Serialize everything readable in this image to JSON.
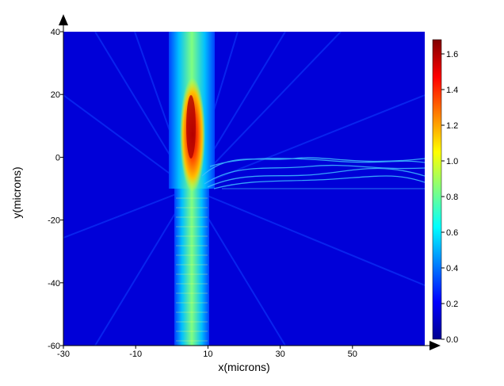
{
  "chart_data": {
    "type": "heatmap",
    "title": "",
    "xlabel": "x(microns)",
    "ylabel": "y(microns)",
    "xlim": [
      -30,
      70
    ],
    "ylim": [
      -60,
      40
    ],
    "x_ticks": [
      -30,
      -10,
      10,
      30,
      50
    ],
    "y_ticks": [
      40,
      20,
      0,
      -20,
      -40,
      -60
    ],
    "colorbar": {
      "min": 0.0,
      "max": 1.68,
      "ticks": [
        "1.6",
        "1.4",
        "1.2",
        "1.0",
        "0.8",
        "0.6",
        "0.4",
        "0.2",
        "0.0"
      ],
      "colormap": [
        "#00008f",
        "#0000ff",
        "#0080ff",
        "#00ffff",
        "#80ff80",
        "#ffff00",
        "#ff8000",
        "#ff0000",
        "#800000"
      ]
    },
    "background_level": 0.1,
    "features": [
      {
        "name": "input waveguide",
        "x_range": [
          -2,
          10
        ],
        "y_range": [
          -60,
          -10
        ],
        "level": 0.85
      },
      {
        "name": "vertical beam",
        "x_range": [
          -2,
          10
        ],
        "y_range": [
          -10,
          40
        ],
        "level": 0.85
      },
      {
        "name": "hot spot",
        "x": 6,
        "y": 5,
        "level": 1.68
      },
      {
        "name": "horizontal guided light",
        "x_range": [
          10,
          70
        ],
        "y_range": [
          -10,
          0
        ],
        "level": 0.6
      }
    ]
  }
}
